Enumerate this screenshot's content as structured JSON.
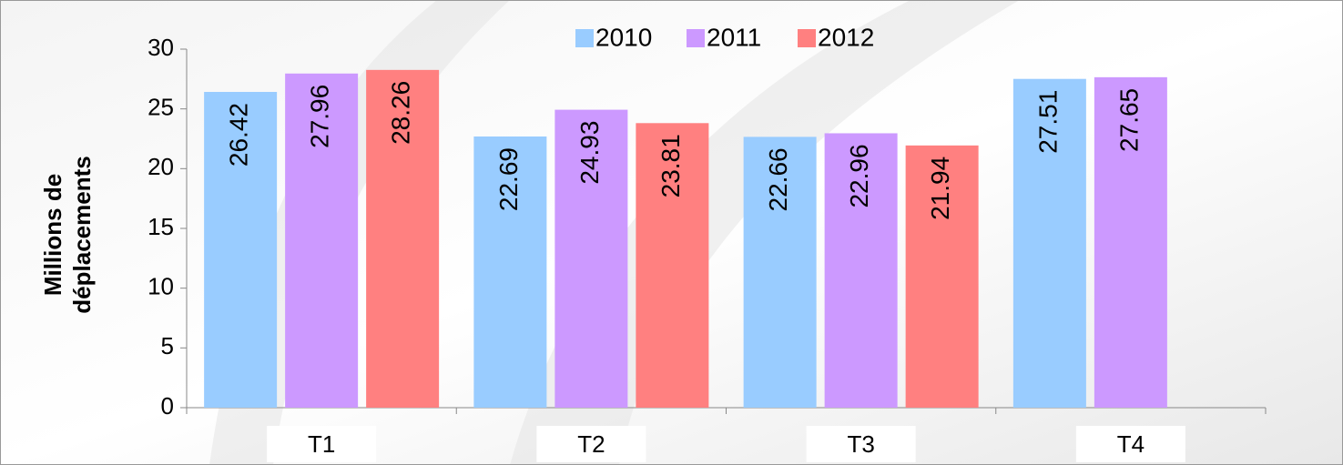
{
  "chart_data": {
    "type": "bar",
    "ylabel": [
      "Millions de",
      "déplacements"
    ],
    "categories": [
      "T1",
      "T2",
      "T3",
      "T4"
    ],
    "series": [
      {
        "name": "2010",
        "color": "#99ccff",
        "values": [
          26.42,
          22.69,
          22.66,
          27.51
        ]
      },
      {
        "name": "2011",
        "color": "#cc99ff",
        "values": [
          27.96,
          24.93,
          22.96,
          27.65
        ]
      },
      {
        "name": "2012",
        "color": "#ff8080",
        "values": [
          28.26,
          23.81,
          21.94,
          null
        ]
      }
    ],
    "ylim": [
      0,
      30
    ],
    "yticks": [
      0,
      5,
      10,
      15,
      20,
      25,
      30
    ],
    "grid": false,
    "legend": "top"
  }
}
